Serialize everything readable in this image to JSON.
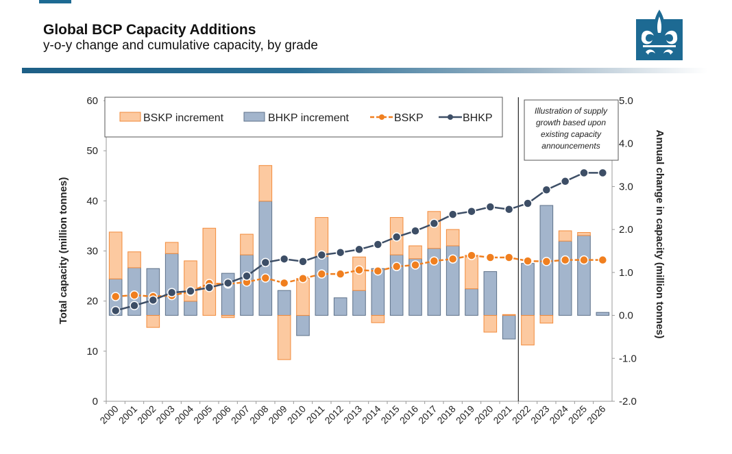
{
  "header": {
    "title": "Global BCP Capacity Additions",
    "subtitle": "y-o-y change and cumulative capacity, by grade"
  },
  "colors": {
    "brand": "#1d6a93",
    "bskp_fill": "#fcc9a0",
    "bskp_stroke": "#f28a3a",
    "bhkp_fill": "#a3b5cc",
    "bhkp_stroke": "#5e7189",
    "bskp_line": "#f07f1f",
    "bhkp_line": "#3d4e66"
  },
  "chart_data": {
    "type": "bar+line",
    "categories": [
      "2000",
      "2001",
      "2002",
      "2003",
      "2004",
      "2005",
      "2006",
      "2007",
      "2008",
      "2009",
      "2010",
      "2011",
      "2012",
      "2013",
      "2014",
      "2015",
      "2016",
      "2017",
      "2018",
      "2019",
      "2020",
      "2021",
      "2022",
      "2023",
      "2024",
      "2025",
      "2026"
    ],
    "ylabel": "Total capacity (million tonnes)",
    "y2label": "Annual change in capacity (million tonnes)",
    "ylim": [
      0,
      60
    ],
    "yticks": [
      "0",
      "10",
      "20",
      "30",
      "40",
      "50",
      "60"
    ],
    "y2lim": [
      -2,
      5
    ],
    "y2ticks": [
      "-2.0",
      "-1.0",
      "0.0",
      "1.0",
      "2.0",
      "3.0",
      "4.0",
      "5.0"
    ],
    "legend": {
      "placement": "top-left",
      "entries": [
        "BSKP increment",
        "BHKP increment",
        "BSKP",
        "BHKP"
      ]
    },
    "annotation": [
      "Illustration of supply",
      "growth based upon",
      "existing capacity",
      "announcements"
    ],
    "annotation_divider_between": [
      "2021",
      "2022"
    ],
    "bars_axis": "right",
    "bars_stacking": "BHKP increment first, BSKP increment stacked",
    "series": [
      {
        "name": "BHKP increment",
        "axis": "right",
        "type": "bar",
        "values": [
          0.85,
          1.11,
          1.09,
          1.44,
          0.33,
          0,
          0.98,
          1.41,
          2.66,
          0.58,
          -0.47,
          1.37,
          0.41,
          0.58,
          1.09,
          1.41,
          1.32,
          1.56,
          1.62,
          0.62,
          1.02,
          -0.55,
          1.21,
          2.56,
          1.73,
          1.86,
          0.07
        ]
      },
      {
        "name": "BSKP increment",
        "axis": "right",
        "type": "bar",
        "values": [
          1.09,
          0.37,
          -0.28,
          0.26,
          0.94,
          2.03,
          -0.05,
          0.48,
          0.83,
          -1.03,
          0.86,
          0.91,
          0,
          0.78,
          -0.17,
          0.87,
          0.3,
          0.86,
          0.38,
          0.78,
          -0.39,
          0.02,
          -0.69,
          -0.18,
          0.24,
          0.07,
          0
        ]
      },
      {
        "name": "BSKP",
        "axis": "left",
        "type": "line",
        "values": [
          20.9,
          21.2,
          20.9,
          21.1,
          21.9,
          23.5,
          23.4,
          23.8,
          24.6,
          23.6,
          24.5,
          25.4,
          25.4,
          26.2,
          26.0,
          26.9,
          27.2,
          28.0,
          28.4,
          29.1,
          28.7,
          28.7,
          28.0,
          27.9,
          28.2,
          28.2,
          28.2
        ]
      },
      {
        "name": "BHKP",
        "axis": "left",
        "type": "line",
        "values": [
          18.1,
          19.1,
          20.2,
          21.7,
          22.0,
          22.7,
          23.6,
          25.0,
          27.7,
          28.4,
          27.9,
          29.2,
          29.7,
          30.3,
          31.3,
          32.8,
          34.0,
          35.5,
          37.3,
          37.9,
          38.8,
          38.3,
          39.5,
          42.2,
          43.9,
          45.6,
          45.6
        ]
      }
    ]
  }
}
